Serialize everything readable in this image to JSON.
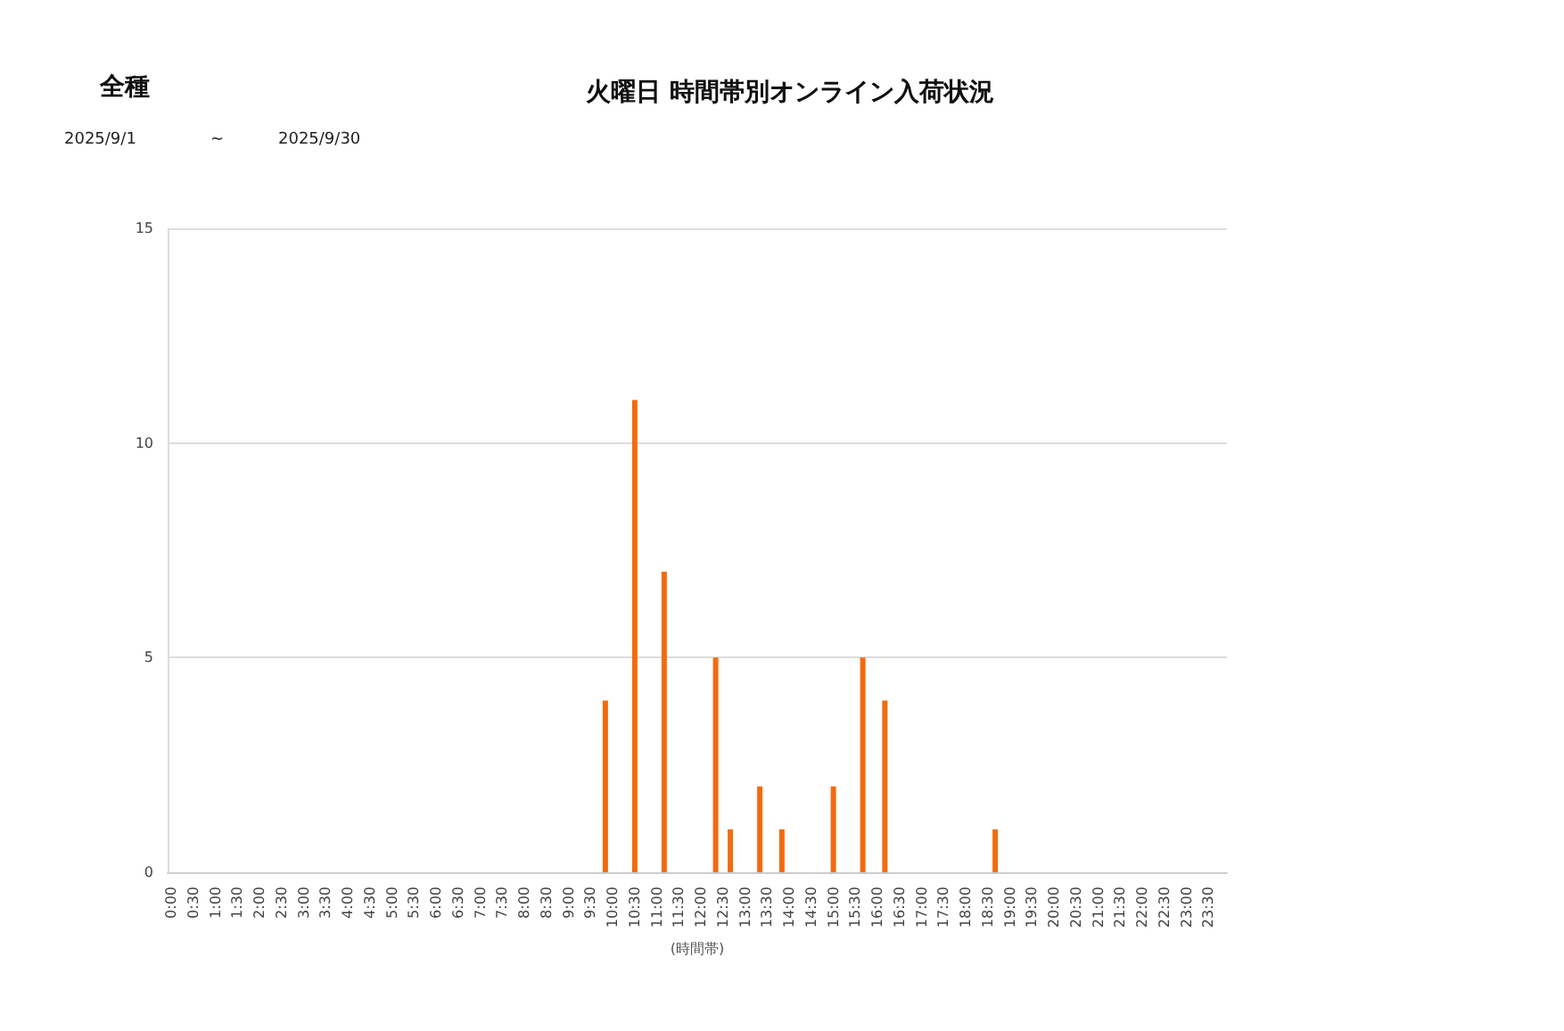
{
  "chart_data": {
    "type": "bar",
    "title": "火曜日 時間帯別オンライン入荷状況",
    "subtitle": "全種",
    "annotations": [
      "2025/9/1",
      "~",
      "2025/9/30"
    ],
    "xlabel": "(時間帯)",
    "categories": [
      "0:00",
      null,
      null,
      "0:30",
      null,
      null,
      "1:00",
      null,
      null,
      "1:30",
      null,
      null,
      "2:00",
      null,
      null,
      "2:30",
      null,
      null,
      "3:00",
      null,
      null,
      "3:30",
      null,
      null,
      "4:00",
      null,
      null,
      "4:30",
      null,
      null,
      "5:00",
      null,
      null,
      "5:30",
      null,
      null,
      "6:00",
      null,
      null,
      "6:30",
      null,
      null,
      "7:00",
      null,
      null,
      "7:30",
      null,
      null,
      "8:00",
      null,
      null,
      "8:30",
      null,
      null,
      "9:00",
      null,
      null,
      "9:30",
      null,
      null,
      "10:00",
      null,
      null,
      "10:30",
      null,
      null,
      "11:00",
      null,
      null,
      "11:30",
      null,
      null,
      "12:00",
      null,
      null,
      "12:30",
      null,
      null,
      "13:00",
      null,
      null,
      "13:30",
      null,
      null,
      "14:00",
      null,
      null,
      "14:30",
      null,
      null,
      "15:00",
      null,
      null,
      "15:30",
      null,
      null,
      "16:00",
      null,
      null,
      "16:30",
      null,
      null,
      "17:00",
      null,
      null,
      "17:30",
      null,
      null,
      "18:00",
      null,
      null,
      "18:30",
      null,
      null,
      "19:00",
      null,
      null,
      "19:30",
      null,
      null,
      "20:00",
      null,
      null,
      "20:30",
      null,
      null,
      "21:00",
      null,
      null,
      "21:30",
      null,
      null,
      "22:00",
      null,
      null,
      "22:30",
      null,
      null,
      "23:00",
      null,
      null,
      "23:30",
      null,
      null
    ],
    "values": [
      0,
      0,
      0,
      0,
      0,
      0,
      0,
      0,
      0,
      0,
      0,
      0,
      0,
      0,
      0,
      0,
      0,
      0,
      0,
      0,
      0,
      0,
      0,
      0,
      0,
      0,
      0,
      0,
      0,
      0,
      0,
      0,
      0,
      0,
      0,
      0,
      0,
      0,
      0,
      0,
      0,
      0,
      0,
      0,
      0,
      0,
      0,
      0,
      0,
      0,
      0,
      0,
      0,
      0,
      0,
      0,
      0,
      0,
      0,
      4,
      0,
      0,
      0,
      11,
      0,
      0,
      0,
      7,
      0,
      0,
      0,
      0,
      0,
      0,
      5,
      0,
      1,
      0,
      0,
      0,
      2,
      0,
      0,
      1,
      0,
      0,
      0,
      0,
      0,
      0,
      2,
      0,
      0,
      0,
      5,
      0,
      0,
      4,
      0,
      0,
      0,
      0,
      0,
      0,
      0,
      0,
      0,
      0,
      0,
      0,
      0,
      0,
      1,
      0,
      0,
      0,
      0,
      0,
      0,
      0,
      0,
      0,
      0,
      0,
      0,
      0,
      0,
      0,
      0,
      0,
      0,
      0,
      0,
      0,
      0,
      0,
      0,
      0,
      0,
      0,
      0,
      0,
      0,
      0
    ],
    "color": "#f26b0f",
    "ylim": [
      0,
      15
    ],
    "yticks": [
      0,
      5,
      10,
      15
    ],
    "grid": "y"
  }
}
